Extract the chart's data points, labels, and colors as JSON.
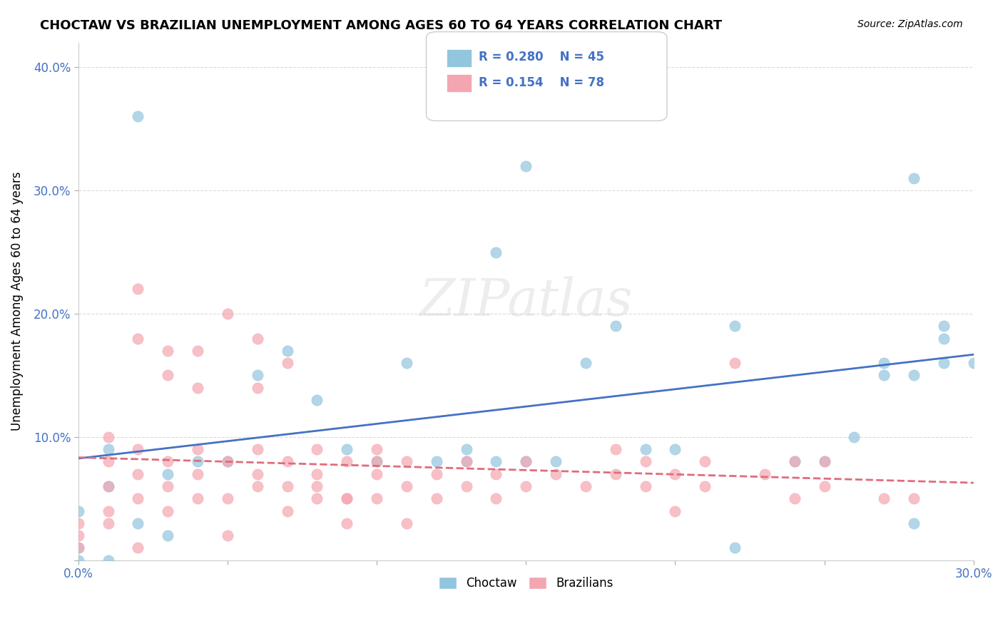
{
  "title": "CHOCTAW VS BRAZILIAN UNEMPLOYMENT AMONG AGES 60 TO 64 YEARS CORRELATION CHART",
  "source": "Source: ZipAtlas.com",
  "xlabel": "",
  "ylabel": "Unemployment Among Ages 60 to 64 years",
  "xlim": [
    0.0,
    0.3
  ],
  "ylim": [
    0.0,
    0.42
  ],
  "xticks": [
    0.0,
    0.05,
    0.1,
    0.15,
    0.2,
    0.25,
    0.3
  ],
  "yticks": [
    0.0,
    0.1,
    0.2,
    0.3,
    0.4
  ],
  "ytick_labels": [
    "",
    "10.0%",
    "20.0%",
    "30.0%",
    "40.0%"
  ],
  "xtick_labels": [
    "0.0%",
    "",
    "",
    "",
    "",
    "",
    "30.0%"
  ],
  "choctaw_R": 0.28,
  "choctaw_N": 45,
  "brazilian_R": 0.154,
  "brazilian_N": 78,
  "choctaw_color": "#92c5de",
  "brazilian_color": "#f4a6b0",
  "choctaw_line_color": "#4472c4",
  "brazilian_line_color": "#e06c7a",
  "watermark": "ZIPatlas",
  "choctaw_x": [
    0.02,
    0.05,
    0.01,
    0.0,
    0.02,
    0.03,
    0.0,
    0.01,
    0.01,
    0.0,
    0.06,
    0.04,
    0.03,
    0.07,
    0.08,
    0.09,
    0.1,
    0.12,
    0.11,
    0.13,
    0.14,
    0.15,
    0.16,
    0.17,
    0.18,
    0.19,
    0.14,
    0.13,
    0.2,
    0.22,
    0.24,
    0.25,
    0.26,
    0.27,
    0.15,
    0.16,
    0.27,
    0.28,
    0.29,
    0.29,
    0.28,
    0.3,
    0.29,
    0.22,
    0.28
  ],
  "choctaw_y": [
    0.36,
    0.08,
    0.06,
    0.04,
    0.03,
    0.02,
    0.01,
    0.0,
    0.09,
    0.0,
    0.15,
    0.08,
    0.07,
    0.17,
    0.13,
    0.09,
    0.08,
    0.08,
    0.16,
    0.09,
    0.25,
    0.08,
    0.08,
    0.16,
    0.19,
    0.09,
    0.08,
    0.08,
    0.09,
    0.19,
    0.08,
    0.08,
    0.1,
    0.16,
    0.32,
    0.38,
    0.15,
    0.15,
    0.16,
    0.19,
    0.03,
    0.16,
    0.18,
    0.01,
    0.31
  ],
  "brazilian_x": [
    0.0,
    0.0,
    0.0,
    0.01,
    0.01,
    0.01,
    0.01,
    0.01,
    0.02,
    0.02,
    0.02,
    0.02,
    0.03,
    0.03,
    0.03,
    0.03,
    0.04,
    0.04,
    0.04,
    0.05,
    0.05,
    0.05,
    0.06,
    0.06,
    0.06,
    0.07,
    0.07,
    0.07,
    0.08,
    0.08,
    0.08,
    0.09,
    0.09,
    0.1,
    0.1,
    0.1,
    0.1,
    0.11,
    0.11,
    0.12,
    0.12,
    0.13,
    0.13,
    0.14,
    0.14,
    0.15,
    0.15,
    0.16,
    0.17,
    0.18,
    0.18,
    0.19,
    0.19,
    0.2,
    0.2,
    0.21,
    0.21,
    0.22,
    0.23,
    0.24,
    0.24,
    0.25,
    0.25,
    0.02,
    0.02,
    0.03,
    0.04,
    0.04,
    0.05,
    0.06,
    0.06,
    0.07,
    0.08,
    0.09,
    0.09,
    0.11,
    0.27,
    0.28
  ],
  "brazilian_y": [
    0.03,
    0.01,
    0.02,
    0.04,
    0.06,
    0.08,
    0.1,
    0.03,
    0.05,
    0.07,
    0.09,
    0.01,
    0.06,
    0.08,
    0.17,
    0.04,
    0.07,
    0.09,
    0.05,
    0.08,
    0.05,
    0.02,
    0.07,
    0.09,
    0.06,
    0.08,
    0.06,
    0.04,
    0.07,
    0.09,
    0.06,
    0.08,
    0.05,
    0.07,
    0.08,
    0.05,
    0.09,
    0.06,
    0.08,
    0.07,
    0.05,
    0.08,
    0.06,
    0.07,
    0.05,
    0.08,
    0.06,
    0.07,
    0.06,
    0.09,
    0.07,
    0.08,
    0.06,
    0.07,
    0.04,
    0.08,
    0.06,
    0.16,
    0.07,
    0.08,
    0.05,
    0.06,
    0.08,
    0.22,
    0.18,
    0.15,
    0.17,
    0.14,
    0.2,
    0.18,
    0.14,
    0.16,
    0.05,
    0.05,
    0.03,
    0.03,
    0.05,
    0.05
  ]
}
